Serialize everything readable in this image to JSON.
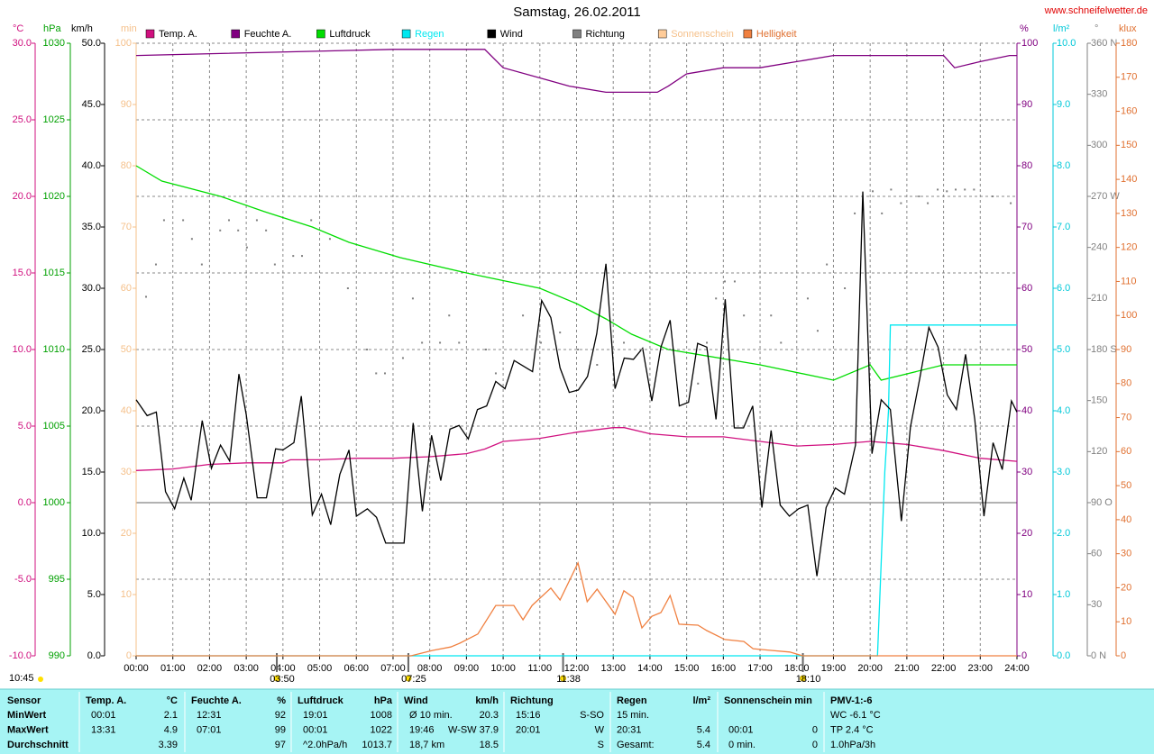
{
  "chart_data": {
    "type": "line",
    "title": "Samstag, 26.02.2011",
    "site": "www.schneifelwetter.de",
    "grid": true,
    "xlim": [
      0,
      24
    ],
    "xticks": [
      {
        "value": 0,
        "label": "00:00"
      },
      {
        "value": 1,
        "label": "01:00"
      },
      {
        "value": 2,
        "label": "02:00"
      },
      {
        "value": 3,
        "label": "03:00"
      },
      {
        "value": 4,
        "label": "04:00"
      },
      {
        "value": 5,
        "label": "05:00"
      },
      {
        "value": 6,
        "label": "06:00"
      },
      {
        "value": 7,
        "label": "07:00"
      },
      {
        "value": 8,
        "label": "08:00"
      },
      {
        "value": 9,
        "label": "09:00"
      },
      {
        "value": 10,
        "label": "10:00"
      },
      {
        "value": 11,
        "label": "11:00"
      },
      {
        "value": 12,
        "label": "12:00"
      },
      {
        "value": 13,
        "label": "13:00"
      },
      {
        "value": 14,
        "label": "14:00"
      },
      {
        "value": 15,
        "label": "15:00"
      },
      {
        "value": 16,
        "label": "16:00"
      },
      {
        "value": 17,
        "label": "17:00"
      },
      {
        "value": 18,
        "label": "18:00"
      },
      {
        "value": 19,
        "label": "19:00"
      },
      {
        "value": 20,
        "label": "20:00"
      },
      {
        "value": 21,
        "label": "21:00"
      },
      {
        "value": 22,
        "label": "22:00"
      },
      {
        "value": 23,
        "label": "23:00"
      },
      {
        "value": 24,
        "label": "24:00"
      }
    ],
    "y_axes": [
      {
        "unit": "°C",
        "color": "#d0107f",
        "lim": [
          -10,
          30
        ],
        "ticks": [
          {
            "value": -10,
            "label": "-10.0"
          },
          {
            "value": -5,
            "label": "-5.0"
          },
          {
            "value": 0,
            "label": "0.0"
          },
          {
            "value": 5,
            "label": "5.0"
          },
          {
            "value": 10,
            "label": "10.0"
          },
          {
            "value": 15,
            "label": "15.0"
          },
          {
            "value": 20,
            "label": "20.0"
          },
          {
            "value": 25,
            "label": "25.0"
          },
          {
            "value": 30,
            "label": "30.0"
          }
        ]
      },
      {
        "unit": "hPa",
        "color": "#00a000",
        "lim": [
          990,
          1030
        ],
        "ticks": [
          990,
          995,
          1000,
          1005,
          1010,
          1015,
          1020,
          1025,
          1030
        ]
      },
      {
        "unit": "km/h",
        "color": "#000000",
        "lim": [
          0,
          50
        ],
        "ticks": [
          {
            "value": 0,
            "label": "0.0"
          },
          {
            "value": 5,
            "label": "5.0"
          },
          {
            "value": 10,
            "label": "10.0"
          },
          {
            "value": 15,
            "label": "15.0"
          },
          {
            "value": 20,
            "label": "20.0"
          },
          {
            "value": 25,
            "label": "25.0"
          },
          {
            "value": 30,
            "label": "30.0"
          },
          {
            "value": 35,
            "label": "35.0"
          },
          {
            "value": 40,
            "label": "40.0"
          },
          {
            "value": 45,
            "label": "45.0"
          },
          {
            "value": 50,
            "label": "50.0"
          }
        ]
      },
      {
        "unit": "min",
        "color": "#f5c08a",
        "lim": [
          0,
          100
        ],
        "ticks": [
          0,
          10,
          20,
          30,
          40,
          50,
          60,
          70,
          80,
          90,
          100
        ]
      },
      {
        "unit": "%",
        "color": "#800080",
        "lim": [
          0,
          100
        ],
        "ticks": [
          0,
          10,
          20,
          30,
          40,
          50,
          60,
          70,
          80,
          90,
          100
        ]
      },
      {
        "unit": "l/m²",
        "color": "#00c8d8",
        "lim": [
          0,
          10
        ],
        "ticks": [
          {
            "value": 0,
            "label": "0.0"
          },
          {
            "value": 1,
            "label": "1.0"
          },
          {
            "value": 2,
            "label": "2.0"
          },
          {
            "value": 3,
            "label": "3.0"
          },
          {
            "value": 4,
            "label": "4.0"
          },
          {
            "value": 5,
            "label": "5.0"
          },
          {
            "value": 6,
            "label": "6.0"
          },
          {
            "value": 7,
            "label": "7.0"
          },
          {
            "value": 8,
            "label": "8.0"
          },
          {
            "value": 9,
            "label": "9.0"
          },
          {
            "value": 10,
            "label": "10.0"
          }
        ]
      },
      {
        "unit": "°",
        "color": "#808080",
        "lim": [
          0,
          360
        ],
        "ticks": [
          {
            "value": 0,
            "label": "0 N"
          },
          30,
          60,
          {
            "value": 90,
            "label": "90 O"
          },
          120,
          150,
          {
            "value": 180,
            "label": "180 S"
          },
          210,
          240,
          {
            "value": 270,
            "label": "270 W"
          },
          300,
          330,
          {
            "value": 360,
            "label": "360 N"
          }
        ]
      },
      {
        "unit": "klux",
        "color": "#e07030",
        "lim": [
          0,
          180
        ],
        "ticks": [
          0,
          10,
          20,
          30,
          40,
          50,
          60,
          70,
          80,
          90,
          100,
          110,
          120,
          130,
          140,
          150,
          160,
          170,
          180
        ]
      }
    ],
    "series": [
      {
        "name": "Temp. A.",
        "color": "#d0107f",
        "axis": 0,
        "style": "line",
        "x": [
          0,
          1,
          2,
          3,
          4,
          4.2,
          5,
          6,
          7,
          8,
          9,
          9.5,
          10,
          11,
          12,
          13,
          13.3,
          14,
          15,
          16,
          17,
          18,
          19,
          20,
          20.5,
          21,
          22,
          23,
          24
        ],
        "values": [
          2.1,
          2.2,
          2.5,
          2.6,
          2.6,
          2.8,
          2.8,
          2.9,
          2.9,
          3.0,
          3.2,
          3.5,
          4.0,
          4.2,
          4.6,
          4.9,
          4.9,
          4.5,
          4.3,
          4.3,
          4.0,
          3.7,
          3.8,
          4.0,
          3.9,
          3.8,
          3.4,
          2.9,
          2.7
        ]
      },
      {
        "name": "Feuchte A.",
        "color": "#800080",
        "axis": 4,
        "style": "line",
        "x": [
          0,
          7,
          9.5,
          10,
          11.2,
          11.8,
          12.8,
          14.2,
          14.5,
          15,
          16,
          17,
          18,
          19,
          22,
          22.3,
          23,
          23.8,
          24
        ],
        "values": [
          98,
          99,
          99,
          96,
          94,
          93,
          92,
          92,
          93,
          95,
          96,
          96,
          97,
          98,
          98,
          96,
          97,
          98,
          98
        ]
      },
      {
        "name": "Luftdruck",
        "color": "#00dd00",
        "axis": 1,
        "style": "line",
        "x": [
          0,
          0.7,
          2.3,
          3.5,
          4.8,
          5.8,
          7.2,
          9,
          11,
          12,
          12.8,
          13.5,
          14.5,
          17,
          19,
          20,
          20.3,
          22,
          24
        ],
        "values": [
          1022,
          1021,
          1020,
          1019,
          1018,
          1017,
          1016,
          1015,
          1014,
          1013,
          1012,
          1011,
          1010,
          1009,
          1008,
          1009,
          1008,
          1009,
          1009
        ]
      },
      {
        "name": "Regen",
        "color": "#00e8f0",
        "axis": 5,
        "style": "line",
        "legend_text_color": "#00e8f0",
        "x": [
          0,
          20.2,
          20.4,
          20.5,
          20.55,
          24
        ],
        "values": [
          0,
          0,
          3.0,
          4.0,
          5.4,
          5.4
        ]
      },
      {
        "name": "Wind",
        "color": "#000000",
        "axis": 2,
        "style": "line",
        "x": [
          0,
          0.3,
          0.55,
          0.8,
          1.05,
          1.3,
          1.5,
          1.8,
          2.05,
          2.3,
          2.55,
          2.8,
          3,
          3.3,
          3.55,
          3.8,
          4,
          4.3,
          4.5,
          4.8,
          5.05,
          5.3,
          5.55,
          5.8,
          6,
          6.3,
          6.55,
          6.8,
          7.3,
          7.55,
          7.8,
          8.05,
          8.3,
          8.55,
          8.8,
          9.05,
          9.3,
          9.55,
          9.8,
          10.05,
          10.3,
          10.8,
          11.05,
          11.3,
          11.55,
          11.8,
          12.05,
          12.3,
          12.55,
          12.8,
          13.05,
          13.3,
          13.55,
          13.8,
          14.05,
          14.3,
          14.55,
          14.8,
          15.05,
          15.3,
          15.55,
          15.8,
          16.05,
          16.3,
          16.55,
          16.8,
          17.05,
          17.3,
          17.55,
          17.8,
          18.05,
          18.3,
          18.55,
          18.8,
          19.05,
          19.3,
          19.6,
          19.8,
          20.05,
          20.3,
          20.55,
          20.85,
          21.1,
          21.35,
          21.6,
          21.85,
          22.1,
          22.35,
          22.6,
          22.85,
          23.1,
          23.35,
          23.6,
          23.85,
          24
        ],
        "values": [
          20.9,
          19.6,
          19.9,
          13.4,
          12.0,
          14.5,
          12.7,
          19.2,
          15.3,
          17.2,
          15.9,
          23.0,
          19.7,
          12.9,
          12.9,
          16.9,
          16.8,
          17.4,
          21.2,
          11.5,
          13.2,
          10.7,
          14.8,
          16.8,
          11.4,
          12.0,
          11.3,
          9.2,
          9.2,
          19.0,
          11.8,
          18.0,
          14.3,
          18.5,
          18.8,
          17.7,
          20.1,
          20.4,
          22.4,
          21.8,
          24.1,
          23.2,
          29.0,
          27.6,
          23.5,
          21.5,
          21.7,
          22.8,
          26.3,
          32.0,
          21.8,
          24.3,
          24.2,
          25.1,
          20.8,
          25.2,
          27.4,
          20.4,
          20.7,
          25.5,
          25.2,
          19.3,
          29.1,
          18.6,
          18.6,
          20.4,
          12.1,
          18.4,
          12.3,
          11.4,
          12.0,
          12.3,
          6.5,
          12.1,
          13.7,
          13.2,
          17.2,
          37.9,
          16.5,
          20.9,
          20.1,
          11.0,
          18.7,
          22.6,
          26.8,
          25.2,
          21.3,
          20.1,
          24.6,
          19.3,
          11.4,
          17.4,
          15.2,
          20.8,
          19.9
        ]
      },
      {
        "name": "Richtung",
        "color": "#808080",
        "axis": 6,
        "style": "dots",
        "x": [
          0.27,
          0.54,
          0.76,
          1.28,
          1.52,
          1.79,
          2.29,
          2.53,
          2.78,
          3.02,
          3.29,
          3.54,
          3.78,
          4.28,
          4.52,
          4.77,
          5.28,
          5.77,
          6.29,
          6.54,
          6.78,
          7.27,
          7.54,
          7.79,
          8.28,
          8.53,
          8.8,
          9.53,
          9.8,
          10.54,
          11.03,
          11.55,
          12.04,
          12.56,
          13.29,
          13.78,
          14.55,
          15.31,
          15.55,
          15.8,
          16.04,
          16.31,
          16.56,
          17.3,
          17.57,
          18.3,
          18.57,
          18.82,
          19.31,
          19.58,
          20.07,
          20.32,
          20.57,
          20.84,
          21.33,
          21.57,
          21.84,
          22.09,
          22.33,
          22.58,
          22.83,
          23.34,
          23.83
        ],
        "values": [
          211,
          230,
          256,
          256,
          245,
          230,
          250,
          256,
          250,
          240,
          256,
          250,
          230,
          235,
          235,
          256,
          245,
          216,
          180,
          166,
          166,
          175,
          210,
          184,
          184,
          200,
          184,
          180,
          166,
          200,
          184,
          190,
          180,
          171,
          184,
          180,
          180,
          160,
          184,
          210,
          220,
          220,
          200,
          200,
          184,
          210,
          191,
          230,
          216,
          260,
          273,
          260,
          274,
          266,
          270,
          266,
          274,
          273,
          274,
          274,
          274,
          270,
          266
        ]
      },
      {
        "name": "Sonnenschein",
        "color": "#ffcc99",
        "axis": 3,
        "style": "line",
        "legend_text_color": "#f5c08a",
        "x": [],
        "values": []
      },
      {
        "name": "Helligkeit",
        "color": "#f08040",
        "axis": 7,
        "style": "line",
        "legend_text_color": "#e07030",
        "x": [
          0,
          7.3,
          7.49,
          8.08,
          8.57,
          8.82,
          9.31,
          9.8,
          10.29,
          10.54,
          10.79,
          11.3,
          11.55,
          12.04,
          12.29,
          12.56,
          13.05,
          13.29,
          13.54,
          13.78,
          14.05,
          14.3,
          14.55,
          14.79,
          15.31,
          15.55,
          16.04,
          16.56,
          16.81,
          17.3,
          17.81,
          18.16,
          24
        ],
        "values": [
          0,
          0,
          0,
          1.6,
          2.6,
          3.7,
          6.4,
          14.8,
          14.8,
          10.6,
          14.8,
          19.9,
          16.4,
          27.3,
          15.9,
          19.6,
          12.2,
          19.1,
          17.2,
          8.2,
          11.6,
          12.7,
          17.7,
          9.3,
          9.0,
          7.4,
          4.8,
          4.2,
          2.1,
          1.6,
          1.1,
          0,
          0
        ]
      }
    ],
    "day_length": "10:45",
    "events": [
      {
        "label": "03:50",
        "x": 3.833
      },
      {
        "label": "07:25",
        "x": 7.417
      },
      {
        "label": "11:38",
        "x": 11.633
      },
      {
        "label": "18:10",
        "x": 18.167
      }
    ]
  },
  "table": {
    "header": [
      "Sensor",
      "Temp. A.",
      "°C",
      "Feuchte A.",
      "%",
      "Luftdruck",
      "hPa",
      "Wind",
      "km/h",
      "Richtung",
      "Regen",
      "l/m²",
      "Sonnenschein min",
      "PMV-1:-6"
    ],
    "rows": [
      {
        "label": "MinWert",
        "cells": [
          "00:01",
          "2.1",
          "12:31",
          "92",
          "19:01",
          "1008",
          "Ø 10 min.",
          "20.3",
          "15:16",
          "S-SO",
          "15 min.",
          null,
          null,
          null,
          "WC -6.1 °C"
        ]
      },
      {
        "label": "MaxWert",
        "cells": [
          "13:31",
          "4.9",
          "07:01",
          "99",
          "00:01",
          "1022",
          "19:46",
          "W-SW 37.9",
          "20:01",
          "W",
          "20:31",
          "5.4",
          "00:01",
          "0",
          "TP 2.4 °C"
        ]
      },
      {
        "label": "Durchschnitt",
        "cells": [
          null,
          "3.39",
          null,
          "97",
          "^2.0hPa/h",
          "1013.7",
          "18,7 km",
          "18.5",
          null,
          "S",
          "Gesamt:",
          "5.4",
          "0 min.",
          "0",
          "1.0hPa/3h"
        ]
      }
    ]
  }
}
